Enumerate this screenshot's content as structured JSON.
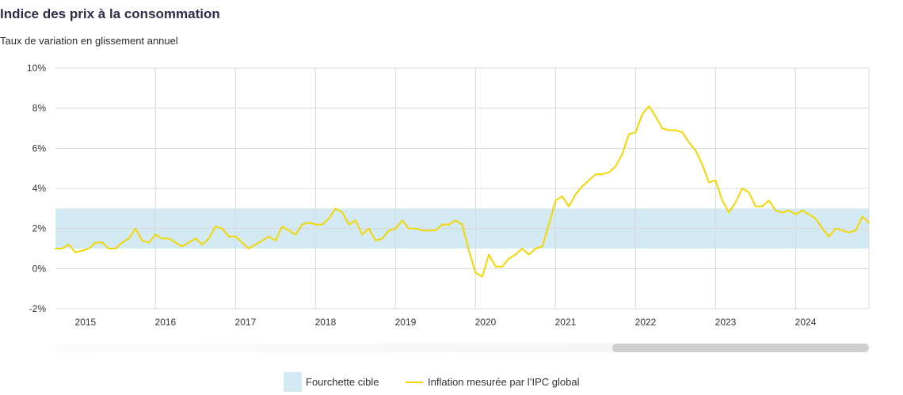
{
  "title": "Indice des prix à la consommation",
  "subtitle": "Taux de variation en glissement annuel",
  "colors": {
    "line": "#f2d700",
    "band": "#d3e9f4",
    "grid": "#d9d9d9",
    "axis_text": "#333333"
  },
  "legend": {
    "band_label": "Fourchette cible",
    "line_label": "Inflation mesurée par l’IPC global"
  },
  "chart_data": {
    "type": "line",
    "title": "Indice des prix à la consommation",
    "subtitle": "Taux de variation en glissement annuel",
    "xlabel": "",
    "ylabel": "",
    "y_unit": "%",
    "ylim": [
      -2,
      10
    ],
    "yticks": [
      -2,
      0,
      2,
      4,
      6,
      8,
      10
    ],
    "ytick_labels": [
      "-2%",
      "0%",
      "2%",
      "4%",
      "6%",
      "8%",
      "10%"
    ],
    "xlim": [
      "2014-10",
      "2024-12"
    ],
    "year_labels": [
      "2015",
      "2016",
      "2017",
      "2018",
      "2019",
      "2020",
      "2021",
      "2022",
      "2023",
      "2024"
    ],
    "grid": true,
    "legend_position": "bottom",
    "target_band": {
      "name": "Fourchette cible",
      "low": 1,
      "high": 3
    },
    "series": [
      {
        "name": "Inflation mesurée par l’IPC global",
        "start": "2014-10",
        "frequency": "monthly",
        "values": [
          1.0,
          1.0,
          1.2,
          0.8,
          0.9,
          1.0,
          1.3,
          1.3,
          1.0,
          1.0,
          1.3,
          1.5,
          2.0,
          1.4,
          1.3,
          1.7,
          1.5,
          1.5,
          1.3,
          1.1,
          1.3,
          1.5,
          1.2,
          1.5,
          2.1,
          2.0,
          1.6,
          1.6,
          1.3,
          1.0,
          1.2,
          1.4,
          1.6,
          1.4,
          2.1,
          1.9,
          1.7,
          2.2,
          2.3,
          2.2,
          2.2,
          2.5,
          3.0,
          2.8,
          2.2,
          2.4,
          1.7,
          2.0,
          1.4,
          1.5,
          1.9,
          2.0,
          2.4,
          2.0,
          2.0,
          1.9,
          1.9,
          1.9,
          2.2,
          2.2,
          2.4,
          2.2,
          0.9,
          -0.2,
          -0.4,
          0.7,
          0.1,
          0.1,
          0.5,
          0.7,
          1.0,
          0.7,
          1.0,
          1.1,
          2.2,
          3.4,
          3.6,
          3.1,
          3.7,
          4.1,
          4.4,
          4.7,
          4.7,
          4.8,
          5.1,
          5.7,
          6.7,
          6.8,
          7.7,
          8.1,
          7.6,
          7.0,
          6.9,
          6.9,
          6.8,
          6.3,
          5.9,
          5.2,
          4.3,
          4.4,
          3.4,
          2.8,
          3.3,
          4.0,
          3.8,
          3.1,
          3.1,
          3.4,
          2.9,
          2.8,
          2.9,
          2.7,
          2.9,
          2.7,
          2.5,
          2.0,
          1.6,
          2.0,
          1.9,
          1.8,
          1.9,
          2.6,
          2.3
        ]
      }
    ]
  }
}
